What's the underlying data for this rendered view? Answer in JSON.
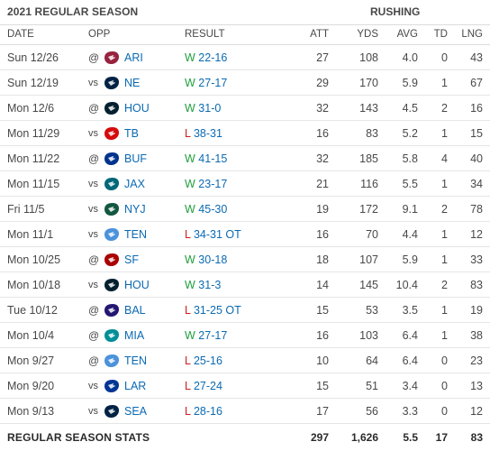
{
  "header": {
    "season_title": "2021 REGULAR SEASON",
    "group_title": "RUSHING"
  },
  "columns": {
    "date": "DATE",
    "opp": "OPP",
    "result": "RESULT",
    "att": "ATT",
    "yds": "YDS",
    "avg": "AVG",
    "td": "TD",
    "lng": "LNG"
  },
  "games": [
    {
      "date": "Sun 12/26",
      "prefix": "@",
      "team": "ARI",
      "logo": "cardinals-logo",
      "logo_color": "#97233f",
      "wl": "W",
      "score": "22-16",
      "att": "27",
      "yds": "108",
      "avg": "4.0",
      "td": "0",
      "lng": "43"
    },
    {
      "date": "Sun 12/19",
      "prefix": "vs",
      "team": "NE",
      "logo": "patriots-logo",
      "logo_color": "#002244",
      "wl": "W",
      "score": "27-17",
      "att": "29",
      "yds": "170",
      "avg": "5.9",
      "td": "1",
      "lng": "67"
    },
    {
      "date": "Mon 12/6",
      "prefix": "@",
      "team": "HOU",
      "logo": "texans-logo",
      "logo_color": "#03202f",
      "wl": "W",
      "score": "31-0",
      "att": "32",
      "yds": "143",
      "avg": "4.5",
      "td": "2",
      "lng": "16"
    },
    {
      "date": "Mon 11/29",
      "prefix": "vs",
      "team": "TB",
      "logo": "buccaneers-logo",
      "logo_color": "#d50a0a",
      "wl": "L",
      "score": "38-31",
      "att": "16",
      "yds": "83",
      "avg": "5.2",
      "td": "1",
      "lng": "15"
    },
    {
      "date": "Mon 11/22",
      "prefix": "@",
      "team": "BUF",
      "logo": "bills-logo",
      "logo_color": "#00338d",
      "wl": "W",
      "score": "41-15",
      "att": "32",
      "yds": "185",
      "avg": "5.8",
      "td": "4",
      "lng": "40"
    },
    {
      "date": "Mon 11/15",
      "prefix": "vs",
      "team": "JAX",
      "logo": "jaguars-logo",
      "logo_color": "#006778",
      "wl": "W",
      "score": "23-17",
      "att": "21",
      "yds": "116",
      "avg": "5.5",
      "td": "1",
      "lng": "34"
    },
    {
      "date": "Fri 11/5",
      "prefix": "vs",
      "team": "NYJ",
      "logo": "jets-logo",
      "logo_color": "#125740",
      "wl": "W",
      "score": "45-30",
      "att": "19",
      "yds": "172",
      "avg": "9.1",
      "td": "2",
      "lng": "78"
    },
    {
      "date": "Mon 11/1",
      "prefix": "vs",
      "team": "TEN",
      "logo": "titans-logo",
      "logo_color": "#4b92db",
      "wl": "L",
      "score": "34-31 OT",
      "att": "16",
      "yds": "70",
      "avg": "4.4",
      "td": "1",
      "lng": "12"
    },
    {
      "date": "Mon 10/25",
      "prefix": "@",
      "team": "SF",
      "logo": "49ers-logo",
      "logo_color": "#aa0000",
      "wl": "W",
      "score": "30-18",
      "att": "18",
      "yds": "107",
      "avg": "5.9",
      "td": "1",
      "lng": "33"
    },
    {
      "date": "Mon 10/18",
      "prefix": "vs",
      "team": "HOU",
      "logo": "texans-logo",
      "logo_color": "#03202f",
      "wl": "W",
      "score": "31-3",
      "att": "14",
      "yds": "145",
      "avg": "10.4",
      "td": "2",
      "lng": "83"
    },
    {
      "date": "Tue 10/12",
      "prefix": "@",
      "team": "BAL",
      "logo": "ravens-logo",
      "logo_color": "#241773",
      "wl": "L",
      "score": "31-25 OT",
      "att": "15",
      "yds": "53",
      "avg": "3.5",
      "td": "1",
      "lng": "19"
    },
    {
      "date": "Mon 10/4",
      "prefix": "@",
      "team": "MIA",
      "logo": "dolphins-logo",
      "logo_color": "#008e97",
      "wl": "W",
      "score": "27-17",
      "att": "16",
      "yds": "103",
      "avg": "6.4",
      "td": "1",
      "lng": "38"
    },
    {
      "date": "Mon 9/27",
      "prefix": "@",
      "team": "TEN",
      "logo": "titans-logo",
      "logo_color": "#4b92db",
      "wl": "L",
      "score": "25-16",
      "att": "10",
      "yds": "64",
      "avg": "6.4",
      "td": "0",
      "lng": "23"
    },
    {
      "date": "Mon 9/20",
      "prefix": "vs",
      "team": "LAR",
      "logo": "rams-logo",
      "logo_color": "#003594",
      "wl": "L",
      "score": "27-24",
      "att": "15",
      "yds": "51",
      "avg": "3.4",
      "td": "0",
      "lng": "13"
    },
    {
      "date": "Mon 9/13",
      "prefix": "vs",
      "team": "SEA",
      "logo": "seahawks-logo",
      "logo_color": "#002244",
      "wl": "L",
      "score": "28-16",
      "att": "17",
      "yds": "56",
      "avg": "3.3",
      "td": "0",
      "lng": "12"
    }
  ],
  "totals": {
    "label": "REGULAR SEASON STATS",
    "att": "297",
    "yds": "1,626",
    "avg": "5.5",
    "td": "17",
    "lng": "83"
  },
  "colors": {
    "win": "#1e9e3c",
    "loss": "#cc1f1f",
    "link": "#0b6ab3"
  }
}
